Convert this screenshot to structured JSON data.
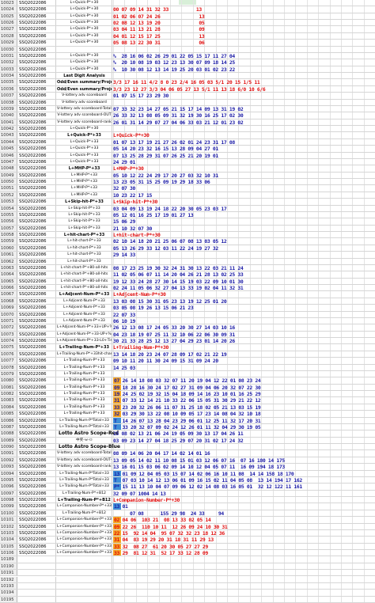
{
  "sheet": {
    "code": "SSQ2022086",
    "rows": [
      {
        "rn": "10023",
        "cd": "SSQ2022086",
        "lb": "L+Quick-P*+30",
        "nums": "",
        "color": "blue"
      },
      {
        "rn": "10024",
        "cd": "SSQ2022086",
        "lb": "L+Quick-P*+30",
        "nums": "00 07 09 14 31 32 33          13",
        "color": "red"
      },
      {
        "rn": "10025",
        "cd": "SSQ2022086",
        "lb": "L+Quick-P*+30",
        "nums": "01 02 06 07 24 26              13",
        "color": "red"
      },
      {
        "rn": "10026",
        "cd": "SSQ2022086",
        "lb": "L+Quick-P*+30",
        "nums": "02 08 12 13 19 20              05",
        "color": "red"
      },
      {
        "rn": "10027",
        "cd": "SSQ2022086",
        "lb": "L+Quick-P*+30",
        "nums": "03 04 11 13 21 28              09",
        "color": "red"
      },
      {
        "rn": "10028",
        "cd": "SSQ2022086",
        "lb": "L+Quick-P*+30",
        "nums": "04 01 12 15 17 25              13",
        "color": "red"
      },
      {
        "rn": "10029",
        "cd": "SSQ2022086",
        "lb": "L+Quick-P*+30",
        "nums": "05 08 13 22 30 31              06",
        "color": "red"
      },
      {
        "rn": "10030",
        "cd": "SSQ2022086",
        "lb": "",
        "nums": "",
        "color": "blue"
      },
      {
        "rn": "10031",
        "cd": "SSQ2022086",
        "lb": "L+Quick-P*+30",
        "nums": "%  28 16 06 02 26 29 01 22 05 15 17 11 27 04",
        "color": "blue"
      },
      {
        "rn": "10032",
        "cd": "SSQ2022086",
        "lb": "L+Quick-P*+30",
        "nums": "%  20 10 08 19 03 12 23 13 30 07 09 18 14 25",
        "color": "blue"
      },
      {
        "rn": "10033",
        "cd": "SSQ2022086",
        "lb": "L+Quick-P*+30",
        "nums": "%  10 30 08 12 13 14 19 25 20 03 01 02 23 22",
        "color": "blue"
      },
      {
        "rn": "10034",
        "cd": "SSQ2022086",
        "lb": "Last Digit Analysis",
        "nums": "",
        "color": "blue",
        "cls": "bold"
      },
      {
        "rn": "10035",
        "cd": "SSQ2022086",
        "lb": "Odd/Even summary/Projecta",
        "nums": "3/3 17 16 11 4/2 8 0 23 2/4 16 05 03 5/1 20 15 1/5 11",
        "color": "red",
        "cls": "bold"
      },
      {
        "rn": "10036",
        "cd": "SSQ2022086",
        "lb": "Odd/Even summary/Projecta",
        "nums": "3/3 23 12 27 3/3 04 06 05 27 13 5/1 11 13 18 6/0 10 6/6",
        "color": "red",
        "cls": "bold"
      },
      {
        "rn": "10037",
        "cd": "SSQ2022086",
        "lb": "V-lottery adv scoreboard",
        "nums": "01 07 15 17 23 29 30",
        "color": "blue"
      },
      {
        "rn": "10038",
        "cd": "SSQ2022086",
        "lb": "V-lottery adv scoreboard",
        "nums": "",
        "color": "blue"
      },
      {
        "rn": "10039",
        "cd": "SSQ2022086",
        "lb": "V-lottery adv scoreboard-TotalScore",
        "nums": "07 33 32 23 14 27 05 21 15 17 14 09 13 31 19 02",
        "color": "blue"
      },
      {
        "rn": "10040",
        "cd": "SSQ2022086",
        "lb": "V-lottery adv scoreboard-OUT",
        "nums": "26 33 32 13 08 05 09 31 32 19 30 16 25 17 02 30",
        "color": "blue"
      },
      {
        "rn": "10041",
        "cd": "SSQ2022086",
        "lb": "V-lottery adv scoreboard-rank",
        "nums": "26 01 31 14 29 07 27 04 06 33 03 21 12 01 23 02",
        "color": "blue"
      },
      {
        "rn": "10042",
        "cd": "SSQ2022086",
        "lb": "L+Quick-P*+30",
        "nums": "",
        "color": "blue"
      },
      {
        "rn": "10043",
        "cd": "SSQ2022086",
        "lb": "L+Quick-P*+33",
        "nums": "L+Quick-P*+30",
        "color": "red",
        "cls": "bold"
      },
      {
        "rn": "10044",
        "cd": "SSQ2022086",
        "lb": "L+Quick-P*+33",
        "nums": "01 07 13 17 19 21 27 26 02 01 24 23 31 17 08",
        "color": "blue"
      },
      {
        "rn": "10045",
        "cd": "SSQ2022086",
        "lb": "L+Quick-P*+33",
        "nums": "05 14 20 23 32 16 15 13 28 09 04 27 01",
        "color": "blue"
      },
      {
        "rn": "10046",
        "cd": "SSQ2022086",
        "lb": "L+Quick-P*+33",
        "nums": "07 13 25 28 29 31 07 26 25 21 20 19 01",
        "color": "blue"
      },
      {
        "rn": "10047",
        "cd": "SSQ2022086",
        "lb": "L+Quick-P*+33",
        "nums": "24 29 01",
        "color": "blue"
      },
      {
        "rn": "10048",
        "cd": "SSQ2022086",
        "lb": "L+MHP-P*+33",
        "nums": "L+MHP-P*+30",
        "color": "red",
        "cls": "bold"
      },
      {
        "rn": "10049",
        "cd": "SSQ2022086",
        "lb": "L+MHP-P*+33",
        "nums": "05 10 12 22 24 29 17 20 27 03 32 10 31",
        "color": "blue"
      },
      {
        "rn": "10050",
        "cd": "SSQ2022086",
        "lb": "L+MHP-P*+33",
        "nums": "13 23 05 31 15 25 09 19 29 18 33 06",
        "color": "blue"
      },
      {
        "rn": "10051",
        "cd": "SSQ2022086",
        "lb": "L+MHP-P*+33",
        "nums": "32 07 30",
        "color": "blue"
      },
      {
        "rn": "10052",
        "cd": "SSQ2022086",
        "lb": "L+MHP-P*+33",
        "nums": "10 23 22 17 15",
        "color": "blue"
      },
      {
        "rn": "10053",
        "cd": "SSQ2022086",
        "lb": "L+Skip-hit-P*+33",
        "nums": "L+Skip-hit-P*+30",
        "color": "red",
        "cls": "bold"
      },
      {
        "rn": "10054",
        "cd": "SSQ2022086",
        "lb": "L+Skip-hit-P*+33",
        "nums": "03 04 09 13 19 24 18 22 20 30 05 23 03 17",
        "color": "blue"
      },
      {
        "rn": "10055",
        "cd": "SSQ2022086",
        "lb": "L+Skip-hit-P*+33",
        "nums": "05 12 01 16 25 17 19 01 27 13",
        "color": "blue"
      },
      {
        "rn": "10056",
        "cd": "SSQ2022086",
        "lb": "L+Skip-hit-P*+33",
        "nums": "15 06 29",
        "color": "blue"
      },
      {
        "rn": "10057",
        "cd": "SSQ2022086",
        "lb": "L+Skip-hit-P*+33",
        "nums": "21 10 32 07 30",
        "color": "blue"
      },
      {
        "rn": "10058",
        "cd": "SSQ2022086",
        "lb": "L+hit-chart-P*+33",
        "nums": "L+hit-chart-P*+30",
        "color": "red",
        "cls": "bold"
      },
      {
        "rn": "10059",
        "cd": "SSQ2022086",
        "lb": "L+hit-chart-P*+33",
        "nums": "02 10 14 18 20 21 25 06 07 08 13 03 05 12",
        "color": "blue"
      },
      {
        "rn": "10060",
        "cd": "SSQ2022086",
        "lb": "L+hit-chart-P*+33",
        "nums": "05 13 26 29 33 12 03 11 22 24 19 27 32",
        "color": "blue"
      },
      {
        "rn": "10061",
        "cd": "SSQ2022086",
        "lb": "L+hit-chart-P*+33",
        "nums": "29 14 33",
        "color": "blue"
      },
      {
        "rn": "10062",
        "cd": "SSQ2022086",
        "lb": "L+hit-chart-P*+33",
        "nums": "",
        "color": "blue"
      },
      {
        "rn": "10063",
        "cd": "SSQ2022086",
        "lb": "L+hit-chart-P*+80-all-hits",
        "nums": "08 17 23 25 19 30 32 24 31 30 13 22 03 21 11 24",
        "color": "blue"
      },
      {
        "rn": "10064",
        "cd": "SSQ2022086",
        "lb": "L+hit-chart-P*+80-all-hits",
        "nums": "11 02 05 06 07 11 14 20 04 26 21 28 13 02 25 33",
        "color": "blue"
      },
      {
        "rn": "10065",
        "cd": "SSQ2022086",
        "lb": "L+hit-chart-P*+80-all-hits",
        "nums": "19 12 33 24 28 27 30 14 15 19 03 22 09 10 01 30",
        "color": "blue"
      },
      {
        "rn": "10066",
        "cd": "SSQ2022086",
        "lb": "L+hit-chart-P*+80-all-hits",
        "nums": "02 24 11 05 06 32 27 04 13 33 19 02 04 11 32 31",
        "color": "blue"
      },
      {
        "rn": "10067",
        "cd": "SSQ2022086",
        "lb": "L+Adjcent-Num-P*+33",
        "nums": "L+Adjcent-Num-P*+30",
        "color": "red",
        "cls": "bold"
      },
      {
        "rn": "10068",
        "cd": "SSQ2022086",
        "lb": "L+Adjcent-Num-P*+33",
        "nums": "13 03 08 15 30 31 05 23 13 19 12 25 01 20",
        "color": "blue"
      },
      {
        "rn": "10069",
        "cd": "SSQ2022086",
        "lb": "L+Adjcent-Num-P*+33",
        "nums": "03 05 08 19 26 13 15 06 21 23",
        "color": "blue"
      },
      {
        "rn": "10070",
        "cd": "SSQ2022086",
        "lb": "L+Adjcent-Num-P*+33",
        "nums": "22 07 33",
        "color": "blue"
      },
      {
        "rn": "10071",
        "cd": "SSQ2022086",
        "lb": "L+Adjcent-Num-P*+33",
        "nums": "06 10 19",
        "color": "blue"
      },
      {
        "rn": "10072",
        "cd": "SSQ2022086",
        "lb": "L+Adjcent-Num-P*+33+UP+%",
        "nums": "26 12 13 08 17 24 05 33 20 30 27 14 03 10 16",
        "color": "blue"
      },
      {
        "rn": "10073",
        "cd": "SSQ2022086",
        "lb": "L+Adjcent-Num-P*+33-UP+%",
        "nums": "04 23 18 19 07 25 11 32 10 06 22 06 30 09 31",
        "color": "blue"
      },
      {
        "rn": "10074",
        "cd": "SSQ2022086",
        "lb": "L+Adjcent-Num-P*+33-L0+Time+",
        "nums": "30 21 33 28 25 12 13 27 04 29 23 01 14 20 26",
        "color": "blue"
      },
      {
        "rn": "10075",
        "cd": "SSQ2022086",
        "lb": "L+Trailing-Num-P*+33",
        "nums": "L+Trailing-Num-P*+30",
        "color": "red",
        "cls": "bold"
      },
      {
        "rn": "10076",
        "cd": "SSQ2022086",
        "lb": "L+Trailing-Num-P*+33hit-charts",
        "nums": "13 14 18 20 23 24 07 28 09 17 02 21 22 19",
        "color": "blue"
      },
      {
        "rn": "10077",
        "cd": "SSQ2022086",
        "lb": "L+Trailing-Num-P*+33",
        "nums": "09 10 11 20 11 30 24 09 15 31 09 24 20",
        "color": "blue"
      },
      {
        "rn": "10078",
        "cd": "SSQ2022086",
        "lb": "L+Trailing-Num-P*+33",
        "nums": "14 25 03",
        "color": "blue"
      },
      {
        "rn": "10079",
        "cd": "SSQ2022086",
        "lb": "L+Trailing-Num-P*+33",
        "nums": "",
        "color": "blue"
      },
      {
        "rn": "10080",
        "cd": "SSQ2022086",
        "lb": "L+Trailing-Num-P*+33",
        "nums": "07 26 14 18 08 03 32 07 11 20 19 04 12 22 01 08 23 24",
        "color": "blue",
        "hl": "orange"
      },
      {
        "rn": "10081",
        "cd": "SSQ2022086",
        "lb": "L+Trailing-Num-P*+33",
        "nums": "09 18 28 16 30 24 17 02 27 31 09 04 06 20 32 07 22 30",
        "color": "blue",
        "hl": "orange"
      },
      {
        "rn": "10082",
        "cd": "SSQ2022086",
        "lb": "L+Trailing-Num-P*+33",
        "nums": "19 24 25 02 19 32 15 04 18 09 14 16 23 10 01 16 25 29",
        "color": "blue",
        "hl": "orange"
      },
      {
        "rn": "10083",
        "cd": "SSQ2022086",
        "lb": "L+Trailing-Num-P*+33",
        "nums": "31 07 33 12 14 21 10 33 22 06 15 05 31 30 29 21 22 12",
        "color": "blue",
        "hl": "orange"
      },
      {
        "rn": "10084",
        "cd": "SSQ2022086",
        "lb": "L+Trailing-Num-P*+33",
        "nums": "33 23 20 32 26 06 11 07 31 25 18 02 05 21 13 03 15 19",
        "color": "blue",
        "hl": "orange"
      },
      {
        "rn": "10085",
        "cd": "SSQ2022086",
        "lb": "L+Trailing-Num-P*+33",
        "nums": "32 03 29 30 13 22 08 10 09 05 17 23 14 08 04 32 10 18",
        "color": "blue",
        "hl": "orange"
      },
      {
        "rn": "10086",
        "cd": "SSQ2022086",
        "lb": "L+Trailing-Num-P*Total+33",
        "nums": "T  14 26 07 13 28 04 23 29 06 01 12 25 11 32 17 20 31",
        "color": "blue",
        "hl": "blue"
      },
      {
        "rn": "10087",
        "cd": "SSQ2022086",
        "lb": "L+Trailing-Num-P*Total+33",
        "nums": "T  33 20 32 07 09 02 24 12 26 01 11 32 04 29 30 19 05",
        "color": "blue",
        "hl": "blue"
      },
      {
        "rn": "10088",
        "cd": "SSQ2022086",
        "lb": "Lotto Astro Scope-Red",
        "nums": "15 08 02 13 21 06 24 19 05 09 30 13 17 04 26 11",
        "color": "blue",
        "cls": "big"
      },
      {
        "rn": "10089",
        "cd": "SSQ2022086",
        "lb": "中奖-ㅂ-ㅁ",
        "nums": "03 09 23 14 27 04 18 25 29 07 20 31 02 17 24 32",
        "color": "blue"
      },
      {
        "rn": "10090",
        "cd": "SSQ2022086",
        "lb": "Lotto Astro Scope-Blue",
        "nums": "",
        "color": "blue",
        "cls": "big"
      },
      {
        "rn": "10091",
        "cd": "SSQ2022086",
        "lb": "V-lottery adv scoreboard-TotalScore-blue",
        "nums": "08 09 14 06 20 04 17 14 02 14 01 16",
        "color": "blue"
      },
      {
        "rn": "10092",
        "cd": "SSQ2022086",
        "lb": "V-lottery adv scoreboard-OUT-blue",
        "nums": "13 09 05 14 02 11 10 08 15 01 03 12 06 07 16  07 16 180 14 175",
        "color": "blue"
      },
      {
        "rn": "10093",
        "cd": "SSQ2022086",
        "lb": "V-lottery adv scoreboard-rank-blue",
        "nums": "13 16 01 15 03 06 02 09 14 10 12 04 05 07 11  16 09 194 18 173",
        "color": "blue"
      },
      {
        "rn": "10094",
        "cd": "SSQ2022086",
        "lb": "L+Trailing-Num-P*Total+33",
        "nums": "13 01 09 12 04 05 03 15 07 14 02 06 16 10 11 08  14 14 158 18 170",
        "color": "blue",
        "hl": "blue"
      },
      {
        "rn": "10095",
        "cd": "SSQ2022086",
        "lb": "L+Trailing-Num-P*Total+33",
        "nums": "T  07 03 10 14 12 13 06 01 09 16 15 02 11 04 05 08  13 14 194 17 162",
        "color": "blue",
        "hl": "blue"
      },
      {
        "rn": "10096",
        "cd": "SSQ2022086",
        "lb": "L+Trailing-Num-P*Total+33",
        "nums": "P* 15 11 13 10 04 07 09 06 12 02 14 08 03 16 05 01  32 12 122 11 161",
        "color": "blue",
        "hl": "blue"
      },
      {
        "rn": "10097",
        "cd": "SSQ2022086",
        "lb": "L+Trailing-Num-P*+B12",
        "nums": "32 09 07 1004 14 13",
        "color": "blue"
      },
      {
        "rn": "10098",
        "cd": "SSQ2022086",
        "lb": "L+Trailing-Num-P*+B12",
        "nums": "L+Companion-Number-P*+30",
        "color": "red",
        "cls": "bold"
      },
      {
        "rn": "10099",
        "cd": "SSQ2022086",
        "lb": "L+Companion-Number-P*+33",
        "nums": "13 01",
        "color": "blue",
        "hl": "blue"
      },
      {
        "rn": "10100",
        "cd": "SSQ2022086",
        "lb": "L+Trailing-Num-P*+B12",
        "nums": "      07 08      155 29 98  24 33     94",
        "color": "blue"
      },
      {
        "rn": "10101",
        "cd": "SSQ2022086",
        "lb": "L+Companion-Number-P*+33",
        "nums": "02 04 06  103 21  08 13 33 02 05 14",
        "color": "red",
        "hl": "orange"
      },
      {
        "rn": "10102",
        "cd": "SSQ2022086",
        "lb": "L+Companion-Number-P*+33",
        "nums": "09 22 26  110 10 11  12 26 09 24 10 30 31",
        "color": "red",
        "hl": "orange"
      },
      {
        "rn": "10103",
        "cd": "SSQ2022086",
        "lb": "L+Companion-Number-P*+33",
        "nums": "22 15  92 14 04  95 07 32 32 23 18 12 36",
        "color": "red",
        "hl": "orange"
      },
      {
        "rn": "10104",
        "cd": "SSQ2022086",
        "lb": "L+Companion-Number-P*+33",
        "nums": "31 04  83 19 29 20 31 18 31 11 29 13",
        "color": "red",
        "hl": "orange"
      },
      {
        "rn": "10105",
        "cd": "SSQ2022086",
        "lb": "L+Companion-Number-P*+33",
        "nums": "33 32  08 27  61 20 30 05 27 27 29",
        "color": "red",
        "hl": "orange"
      },
      {
        "rn": "10106",
        "cd": "SSQ2022086",
        "lb": "L+Companion-Number-P*+33",
        "nums": "33 29  81 12 31  52 17 33 12 28 09",
        "color": "red",
        "hl": "orange"
      },
      {
        "rn": "10189",
        "cd": "",
        "lb": "",
        "nums": "",
        "color": "blue"
      },
      {
        "rn": "10190",
        "cd": "",
        "lb": "",
        "nums": "",
        "color": "blue"
      },
      {
        "rn": "10191",
        "cd": "",
        "lb": "",
        "nums": "",
        "color": "blue"
      },
      {
        "rn": "10192",
        "cd": "",
        "lb": "",
        "nums": "",
        "color": "blue"
      },
      {
        "rn": "10193",
        "cd": "",
        "lb": "",
        "nums": "",
        "color": "blue"
      },
      {
        "rn": "10194",
        "cd": "",
        "lb": "",
        "nums": "",
        "color": "blue"
      },
      {
        "rn": "10195",
        "cd": "",
        "lb": "",
        "nums": "",
        "color": "blue"
      }
    ]
  },
  "colors": {
    "blue": "#1a1aa6",
    "red": "#e01010",
    "orange": "#f6a623",
    "highlight_blue": "#3f8fd8"
  }
}
